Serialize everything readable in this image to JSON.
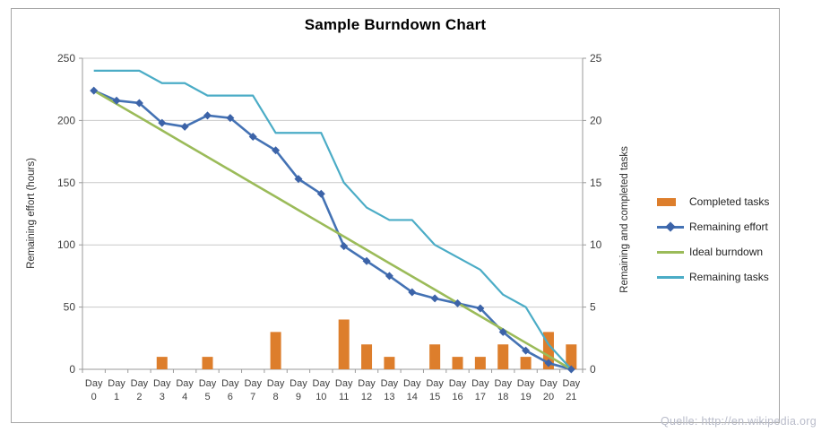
{
  "title": "Sample Burndown Chart",
  "watermark": "Quelle: http://en.wikipedia.org",
  "left_axis": {
    "title": "Remaining effort (hours)",
    "ticks": [
      "250",
      "200",
      "150",
      "100",
      "50",
      "0"
    ],
    "min": 0,
    "max": 250
  },
  "right_axis": {
    "title": "Remaining and completed tasks",
    "ticks": [
      "25",
      "20",
      "15",
      "10",
      "5",
      "0"
    ],
    "min": 0,
    "max": 25
  },
  "x_axis": {
    "label_prefix": "Day"
  },
  "colors": {
    "completed_tasks": "#dd7e2c",
    "remaining_effort": "#4472b4",
    "remaining_effort_marker": "#3c63a8",
    "ideal_burndown": "#9bbb59",
    "remaining_tasks": "#4bacc6",
    "gridline": "#c9c9c9",
    "axis_line": "#9a9a9a",
    "tick_text": "#3f3f3f",
    "frame_border": "#a6a6a6"
  },
  "chart_data": {
    "type": "combo",
    "title": "Sample Burndown Chart",
    "categories": [
      "Day 0",
      "Day 1",
      "Day 2",
      "Day 3",
      "Day 4",
      "Day 5",
      "Day 6",
      "Day 7",
      "Day 8",
      "Day 9",
      "Day 10",
      "Day 11",
      "Day 12",
      "Day 13",
      "Day 14",
      "Day 15",
      "Day 16",
      "Day 17",
      "Day 18",
      "Day 19",
      "Day 20",
      "Day 21"
    ],
    "x": [
      0,
      1,
      2,
      3,
      4,
      5,
      6,
      7,
      8,
      9,
      10,
      11,
      12,
      13,
      14,
      15,
      16,
      17,
      18,
      19,
      20,
      21
    ],
    "left_ylabel": "Remaining effort (hours)",
    "right_ylabel": "Remaining and completed tasks",
    "left_ylim": [
      0,
      250
    ],
    "right_ylim": [
      0,
      25
    ],
    "grid": true,
    "legend_position": "right",
    "series": [
      {
        "name": "Completed tasks",
        "type": "bar",
        "axis": "right",
        "color": "#dd7e2c",
        "values": [
          0,
          0,
          0,
          1,
          0,
          1,
          0,
          0,
          3,
          0,
          0,
          4,
          2,
          1,
          0,
          2,
          1,
          1,
          2,
          1,
          3,
          2
        ]
      },
      {
        "name": "Remaining effort",
        "type": "line",
        "marker": "diamond",
        "axis": "left",
        "color": "#4472b4",
        "marker_color": "#3c63a8",
        "values": [
          224,
          216,
          214,
          198,
          195,
          204,
          202,
          187,
          176,
          153,
          141,
          99,
          87,
          75,
          62,
          57,
          53,
          49,
          30,
          15,
          5,
          0
        ]
      },
      {
        "name": "Ideal burndown",
        "type": "line",
        "axis": "left",
        "color": "#9bbb59",
        "values": [
          224,
          213.3,
          202.7,
          192,
          181.3,
          170.7,
          160,
          149.3,
          138.7,
          128,
          117.3,
          106.7,
          96,
          85.3,
          74.7,
          64,
          53.3,
          42.7,
          32,
          21.3,
          10.7,
          0
        ]
      },
      {
        "name": "Remaining tasks",
        "type": "line",
        "axis": "right",
        "color": "#4bacc6",
        "values": [
          24,
          24,
          24,
          23,
          23,
          22,
          22,
          22,
          19,
          19,
          19,
          15,
          13,
          12,
          12,
          10,
          9,
          8,
          6,
          5,
          2,
          0
        ]
      }
    ]
  },
  "legend": {
    "items": [
      {
        "label": "Completed tasks"
      },
      {
        "label": "Remaining effort"
      },
      {
        "label": "Ideal burndown"
      },
      {
        "label": "Remaining tasks"
      }
    ]
  }
}
